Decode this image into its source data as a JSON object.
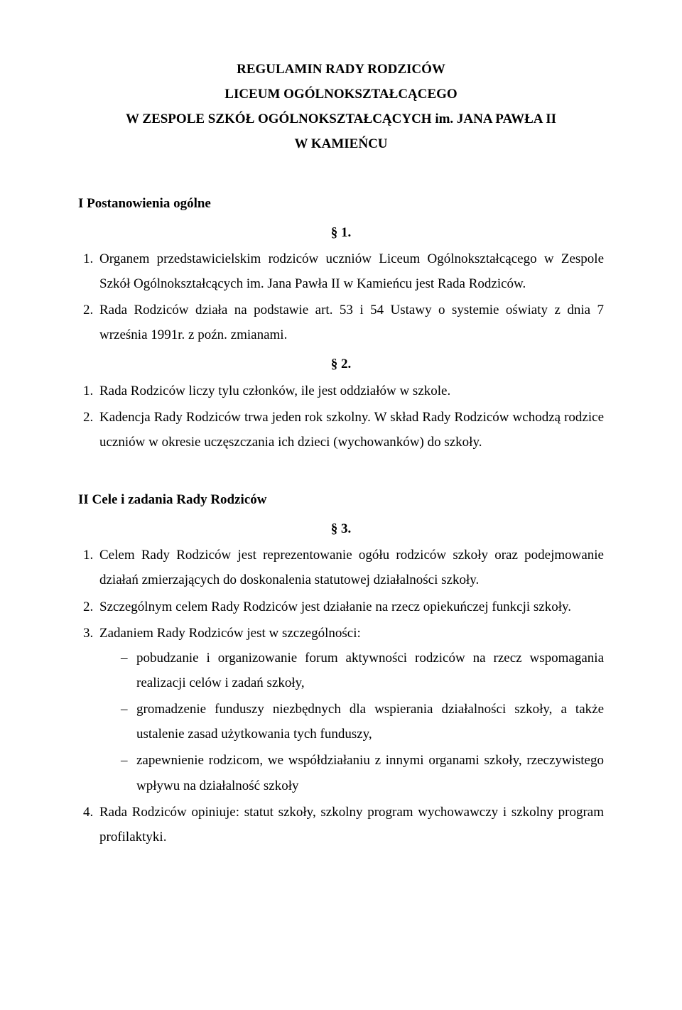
{
  "title": {
    "l1": "REGULAMIN RADY RODZICÓW",
    "l2": "LICEUM OGÓLNOKSZTAŁCĄCEGO",
    "l3": "W ZESPOLE SZKÓŁ OGÓLNOKSZTAŁCĄCYCH im. JANA PAWŁA II",
    "l4": "W KAMIEŃCU"
  },
  "s1": {
    "heading": "I Postanowienia ogólne",
    "p1": {
      "num": "§ 1.",
      "items": [
        "Organem przedstawicielskim rodziców uczniów Liceum Ogólnokształcącego w Zespole Szkół Ogólnokształcących im. Jana Pawła II w Kamieńcu jest Rada Rodziców.",
        "Rada Rodziców działa na podstawie art. 53 i 54 Ustawy o systemie oświaty z dnia 7 września 1991r. z poźn. zmianami."
      ]
    },
    "p2": {
      "num": "§ 2.",
      "items": [
        "Rada Rodziców liczy tylu członków, ile jest oddziałów w szkole.",
        "Kadencja Rady Rodziców trwa jeden rok szkolny. W skład Rady Rodziców wchodzą rodzice uczniów w okresie uczęszczania ich dzieci (wychowanków) do szkoły."
      ]
    }
  },
  "s2": {
    "heading": "II Cele i zadania Rady Rodziców",
    "p3": {
      "num": "§ 3.",
      "items": [
        "Celem Rady Rodziców jest reprezentowanie ogółu rodziców szkoły oraz podejmowanie działań zmierzających do doskonalenia statutowej działalności szkoły.",
        "Szczególnym celem Rady Rodziców jest działanie na rzecz opiekuńczej funkcji szkoły.",
        "Zadaniem Rady Rodziców jest w szczególności:",
        "Rada Rodziców opiniuje: statut szkoły, szkolny program wychowawczy i szkolny program profilaktyki."
      ],
      "sub3": [
        "pobudzanie i organizowanie forum aktywności rodziców na rzecz wspomagania realizacji celów i zadań szkoły,",
        "gromadzenie funduszy niezbędnych dla wspierania działalności szkoły, a także ustalenie zasad użytkowania tych funduszy,",
        "zapewnienie rodzicom, we współdziałaniu z innymi organami szkoły, rzeczywistego wpływu na działalność szkoły"
      ]
    }
  }
}
